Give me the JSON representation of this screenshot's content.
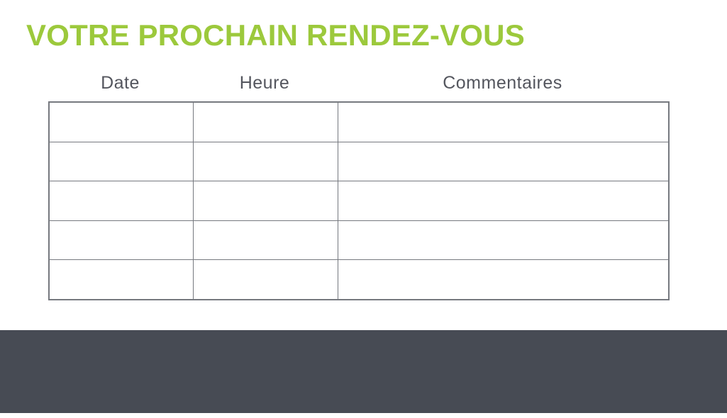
{
  "title": "VOTRE PROCHAIN RENDEZ-VOUS",
  "table": {
    "columns": [
      {
        "label": "Date"
      },
      {
        "label": "Heure"
      },
      {
        "label": "Commentaires"
      }
    ],
    "rows": [
      [
        "",
        "",
        ""
      ],
      [
        "",
        "",
        ""
      ],
      [
        "",
        "",
        ""
      ],
      [
        "",
        "",
        ""
      ],
      [
        "",
        "",
        ""
      ]
    ]
  },
  "colors": {
    "title_green": "#9CC93C",
    "footer_dark": "#474B54",
    "table_border": "#76797F",
    "header_text": "#54565E"
  }
}
